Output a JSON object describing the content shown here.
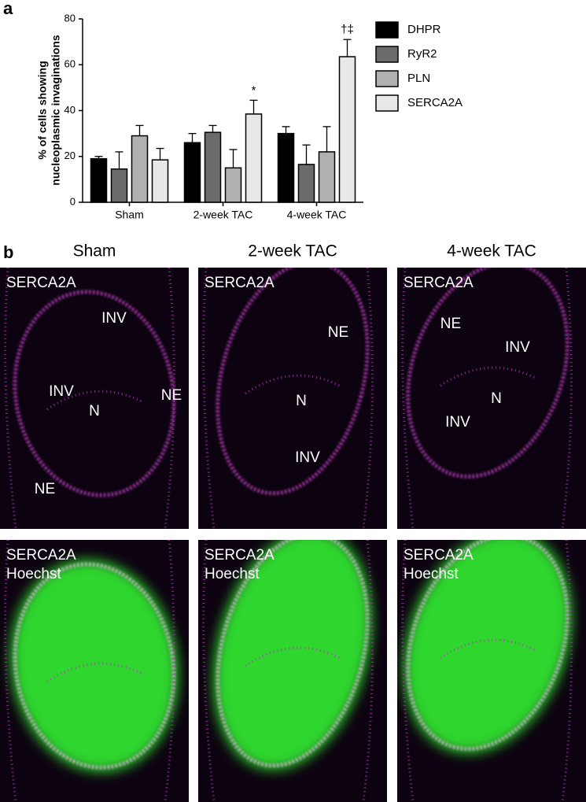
{
  "chart_data": {
    "type": "bar",
    "panel_label": "a",
    "y_label": [
      "% of cells showing",
      "nucleoplasmic invaginations"
    ],
    "categories": [
      "Sham",
      "2-week TAC",
      "4-week TAC"
    ],
    "series": [
      {
        "name": "DHPR",
        "color": "#000000",
        "values": [
          19,
          26,
          30
        ],
        "errors": [
          1,
          4,
          3
        ]
      },
      {
        "name": "RyR2",
        "color": "#6b6b6b",
        "values": [
          14.5,
          30.5,
          16.5
        ],
        "errors": [
          7.5,
          3,
          8.5
        ]
      },
      {
        "name": "PLN",
        "color": "#b0b0b0",
        "values": [
          29,
          15,
          22
        ],
        "errors": [
          4.5,
          8,
          11
        ]
      },
      {
        "name": "SERCA2A",
        "color": "#e8e8e8",
        "values": [
          18.5,
          38.5,
          63.5
        ],
        "errors": [
          5,
          6,
          7.5
        ]
      }
    ],
    "annotations": [
      {
        "text": "*",
        "series": 3,
        "category": 1
      },
      {
        "text": "†‡",
        "series": 3,
        "category": 2
      }
    ],
    "ylim": [
      0,
      80
    ],
    "yticks": [
      0,
      20,
      40,
      60,
      80
    ],
    "legend": "right"
  },
  "panel_b": {
    "label": "b",
    "columns": [
      "Sham",
      "2-week TAC",
      "4-week TAC"
    ],
    "rows": [
      {
        "channels": [
          "SERCA2A"
        ],
        "annotations": [
          [
            "INV",
            "INV",
            "N",
            "NE",
            "NE"
          ],
          [
            "NE",
            "N",
            "INV"
          ],
          [
            "NE",
            "INV",
            "N",
            "INV"
          ]
        ]
      },
      {
        "channels": [
          "SERCA2A",
          "Hoechst"
        ],
        "annotations": [
          [],
          [],
          []
        ]
      }
    ]
  }
}
